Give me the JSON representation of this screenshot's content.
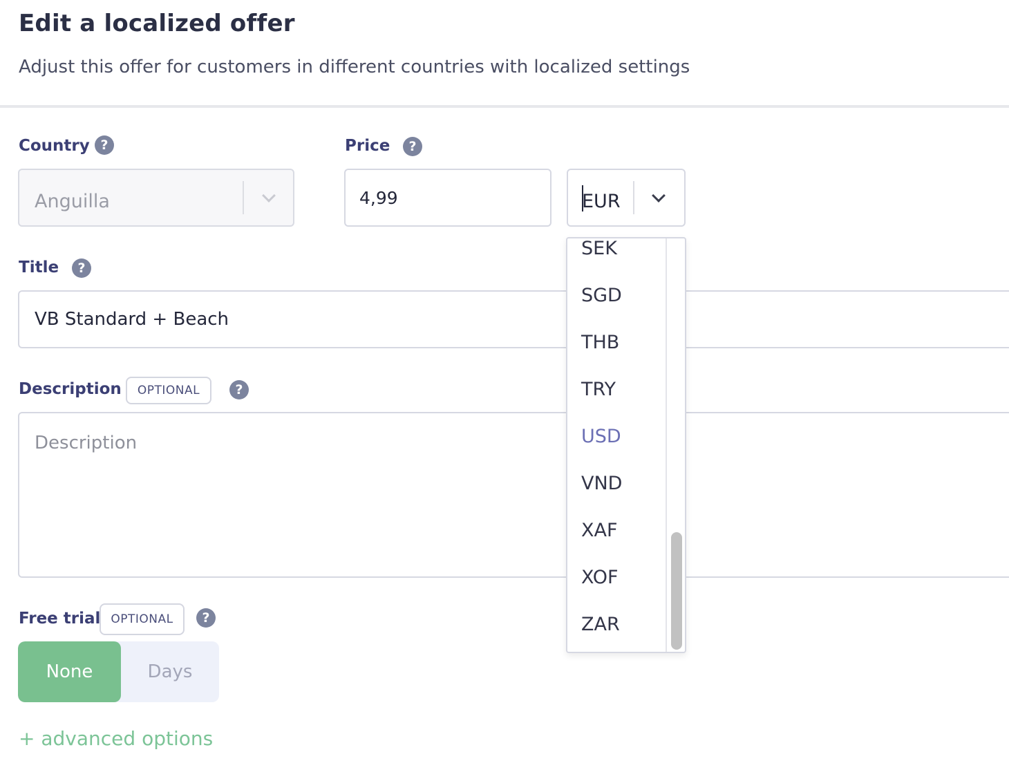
{
  "header": {
    "title": "Edit a localized offer",
    "subtitle": "Adjust this offer for customers in different countries with localized settings"
  },
  "form": {
    "country": {
      "label": "Country",
      "value": "Anguilla",
      "disabled": true
    },
    "price": {
      "label": "Price",
      "value": "4,99"
    },
    "currency": {
      "value": "EUR"
    },
    "title": {
      "label": "Title",
      "value": "VB Standard + Beach"
    },
    "description": {
      "label": "Description",
      "badge": "OPTIONAL",
      "placeholder": "Description",
      "value": ""
    },
    "free_trial": {
      "label": "Free trial",
      "badge": "OPTIONAL",
      "options": [
        "None",
        "Days"
      ],
      "selected": "None"
    },
    "advanced_link": "+ advanced options",
    "help_glyph": "?"
  },
  "currency_dropdown": {
    "options": [
      "SEK",
      "SGD",
      "THB",
      "TRY",
      "USD",
      "VND",
      "XAF",
      "XOF",
      "ZAR"
    ],
    "highlighted": "USD"
  },
  "colors": {
    "label": "#3b3f74",
    "accent_green": "#79c08f",
    "link_green": "#7cc497",
    "highlight_option": "#6b6fb4",
    "help_icon": "#7c849e"
  }
}
